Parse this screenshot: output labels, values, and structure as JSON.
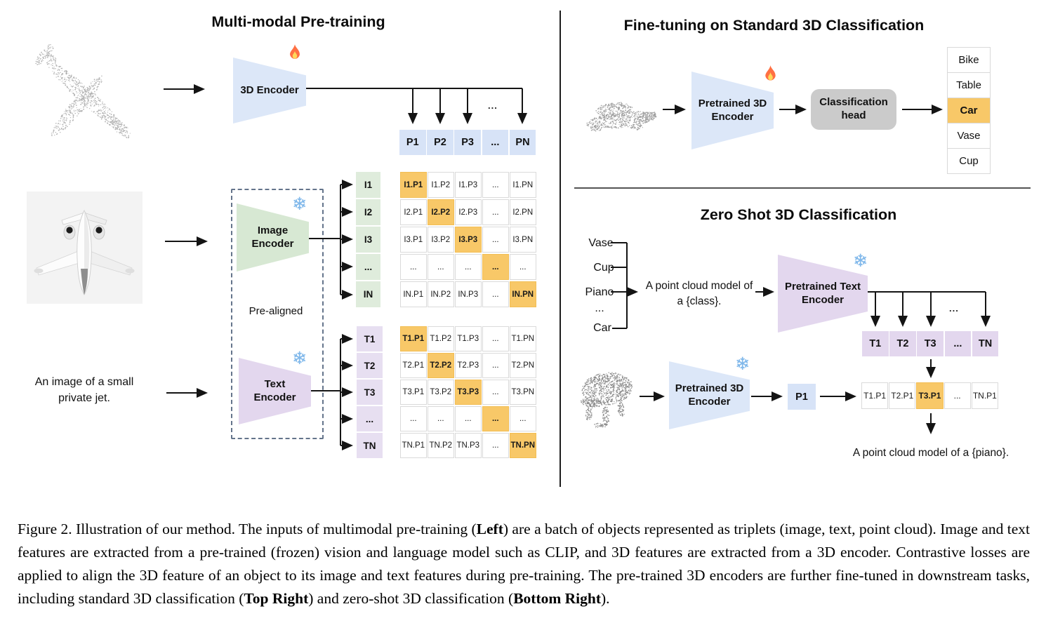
{
  "pretraining": {
    "title": "Multi-modal Pre-training",
    "input_text": "An image of a small\nprivate jet.",
    "encoder_3d_label": "3D Encoder",
    "image_encoder_label": "Image\nEncoder",
    "text_encoder_label": "Text\nEncoder",
    "prealigned_label": "Pre-aligned",
    "branch_ellipsis": "...",
    "p_row": [
      "P1",
      "P2",
      "P3",
      "...",
      "PN"
    ],
    "image_rows": [
      "I1",
      "I2",
      "I3",
      "...",
      "IN"
    ],
    "image_matrix": [
      [
        "I1.P1",
        "I1.P2",
        "I1.P3",
        "...",
        "I1.PN"
      ],
      [
        "I2.P1",
        "I2.P2",
        "I2.P3",
        "...",
        "I2.PN"
      ],
      [
        "I3.P1",
        "I3.P2",
        "I3.P3",
        "...",
        "I3.PN"
      ],
      [
        "...",
        "...",
        "...",
        "...",
        "..."
      ],
      [
        "IN.P1",
        "IN.P2",
        "IN.P3",
        "...",
        "IN.PN"
      ]
    ],
    "text_rows": [
      "T1",
      "T2",
      "T3",
      "...",
      "TN"
    ],
    "text_matrix": [
      [
        "T1.P1",
        "T1.P2",
        "T1.P3",
        "...",
        "T1.PN"
      ],
      [
        "T2.P1",
        "T2.P2",
        "T2.P3",
        "...",
        "T2.PN"
      ],
      [
        "T3.P1",
        "T3.P2",
        "T3.P3",
        "...",
        "T3.PN"
      ],
      [
        "...",
        "...",
        "...",
        "...",
        "..."
      ],
      [
        "TN.P1",
        "TN.P2",
        "TN.P3",
        "...",
        "TN.PN"
      ]
    ]
  },
  "finetune": {
    "title": "Fine-tuning on Standard 3D Classification",
    "encoder_label": "Pretrained 3D\nEncoder",
    "head_label": "Classification\nhead",
    "classes": [
      "Bike",
      "Table",
      "Car",
      "Vase",
      "Cup"
    ],
    "predicted_class": "Car"
  },
  "zeroshot": {
    "title": "Zero Shot 3D Classification",
    "candidate_classes": [
      "Vase",
      "Cup",
      "Piano",
      "...",
      "Car"
    ],
    "prompt": "A point cloud model of\na {class}.",
    "text_encoder_label": "Pretrained Text\nEncoder",
    "encoder_label": "Pretrained 3D\nEncoder",
    "branch_ellipsis": "...",
    "p_feature": "P1",
    "t_row": [
      "T1",
      "T2",
      "T3",
      "...",
      "TN"
    ],
    "result_row": [
      "T1.P1",
      "T2.P1",
      "T3.P1",
      "...",
      "TN.P1"
    ],
    "highlight_index": 2,
    "result_caption": "A point cloud model of a {piano}."
  },
  "caption": {
    "parts": [
      {
        "text": "Figure 2. Illustration of our method.  The inputs of multimodal pre-training (",
        "bold": false
      },
      {
        "text": "Left",
        "bold": true
      },
      {
        "text": ") are a batch of objects represented as triplets (image, text, point cloud).  Image and text features are extracted from a pre-trained (frozen) vision and language model such as CLIP, and 3D features are extracted from a 3D encoder.  Contrastive losses are applied to align the 3D feature of an object to its image and text features during pre-training.  The pre-trained 3D encoders are further fine-tuned in downstream tasks, including standard 3D classification (",
        "bold": false
      },
      {
        "text": "Top Right",
        "bold": true
      },
      {
        "text": ") and zero-shot 3D classification (",
        "bold": false
      },
      {
        "text": "Bottom Right",
        "bold": true
      },
      {
        "text": ").",
        "bold": false
      }
    ]
  },
  "colors": {
    "blue": "#DCE7F8",
    "blue_cell": "#D7E3F7",
    "green": "#D7E8D3",
    "green_cell": "#DFECDC",
    "purple": "#E3D7EE",
    "purple_cell": "#E7DFF1",
    "highlight": "#F8C868",
    "head_gray": "#CBCBCB"
  },
  "icons": {
    "trainable": "fire-icon",
    "frozen": "snowflake-icon"
  }
}
